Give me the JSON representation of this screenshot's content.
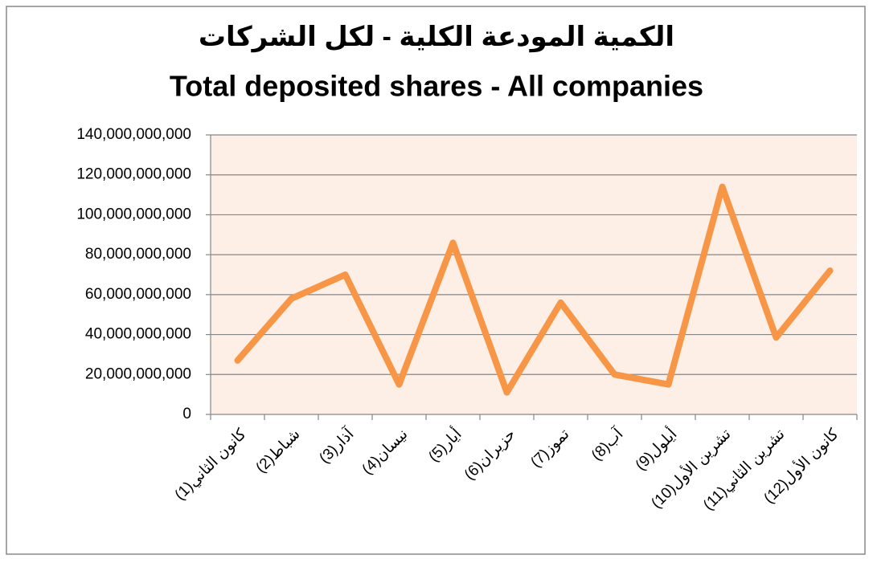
{
  "chart_data": {
    "type": "line",
    "title": "الكمية المودعة الكلية - لكل الشركات",
    "subtitle": "Total deposited shares - All companies",
    "categories": [
      "كانون الثاني(1)",
      "شباط(2)",
      "آذار(3)",
      "نيسان(4)",
      "أيار(5)",
      "حزيران(6)",
      "تموز(7)",
      "آب(8)",
      "أيلول(9)",
      "تشرين الأول(10)",
      "تشرين الثاني(11)",
      "كانون الأول(12)"
    ],
    "values": [
      27000000000,
      58000000000,
      70000000000,
      15000000000,
      86000000000,
      11000000000,
      56000000000,
      20000000000,
      15000000000,
      114000000000,
      38500000000,
      72000000000
    ],
    "color": "#f79646",
    "ylim": [
      0,
      140000000000
    ],
    "yticks": [
      0,
      {
        "value": 20000000000,
        "label": "20,000,000,000"
      },
      {
        "value": 40000000000,
        "label": "40,000,000,000"
      },
      {
        "value": 60000000000,
        "label": "60,000,000,000"
      },
      {
        "value": 80000000000,
        "label": "80,000,000,000"
      },
      {
        "value": 100000000000,
        "label": "100,000,000,000"
      },
      {
        "value": 120000000000,
        "label": "120,000,000,000"
      },
      {
        "value": 140000000000,
        "label": "140,000,000,000"
      }
    ],
    "grid": true
  }
}
